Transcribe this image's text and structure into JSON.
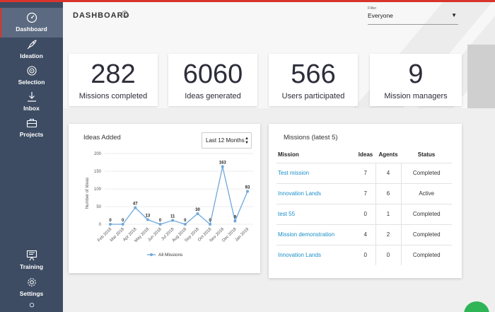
{
  "sidebar": {
    "items": [
      {
        "label": "Dashboard",
        "icon": "gauge-icon"
      },
      {
        "label": "Ideation",
        "icon": "rocket-icon"
      },
      {
        "label": "Selection",
        "icon": "target-icon"
      },
      {
        "label": "Inbox",
        "icon": "download-icon"
      },
      {
        "label": "Projects",
        "icon": "briefcase-icon"
      },
      {
        "label": "Training",
        "icon": "presentation-icon"
      },
      {
        "label": "Settings",
        "icon": "gear-icon"
      }
    ]
  },
  "header": {
    "title": "DASHBOARD",
    "filter_label": "Filter",
    "filter_value": "Everyone"
  },
  "stats": [
    {
      "value": "282",
      "label": "Missions completed"
    },
    {
      "value": "6060",
      "label": "Ideas generated"
    },
    {
      "value": "566",
      "label": "Users participated"
    },
    {
      "value": "9",
      "label": "Mission managers"
    }
  ],
  "ideas_panel": {
    "title": "Ideas Added",
    "range": "Last 12 Months"
  },
  "chart_data": {
    "type": "line",
    "ylabel": "Number of Ideas",
    "ylim": [
      0,
      200
    ],
    "yticks": [
      "0",
      "50",
      "100",
      "150",
      "200"
    ],
    "categories": [
      "Feb 2018",
      "Mar 2018",
      "Apr 2018",
      "May 2018",
      "Jun 2018",
      "Jul 2018",
      "Aug 2018",
      "Sep 2018",
      "Oct 2018",
      "Nov 2018",
      "Dec 2018",
      "Jan 2019"
    ],
    "series": [
      {
        "name": "All Missions",
        "values": [
          0,
          0,
          47,
          13,
          0,
          11,
          0,
          30,
          0,
          163,
          9,
          93
        ]
      }
    ],
    "legend": "bottom",
    "color": "#6fa8dc"
  },
  "missions_panel": {
    "title": "Missions (latest 5)",
    "columns": [
      "Mission",
      "Ideas",
      "Agents",
      "Status"
    ],
    "rows": [
      {
        "mission": "Test mission",
        "ideas": "7",
        "agents": "4",
        "status": "Completed"
      },
      {
        "mission": "Innovation Lands",
        "ideas": "7",
        "agents": "6",
        "status": "Active"
      },
      {
        "mission": "test 55",
        "ideas": "0",
        "agents": "1",
        "status": "Completed"
      },
      {
        "mission": "Mission demonstration",
        "ideas": "4",
        "agents": "2",
        "status": "Completed"
      },
      {
        "mission": "Innovation Lands",
        "ideas": "0",
        "agents": "0",
        "status": "Completed"
      }
    ]
  }
}
